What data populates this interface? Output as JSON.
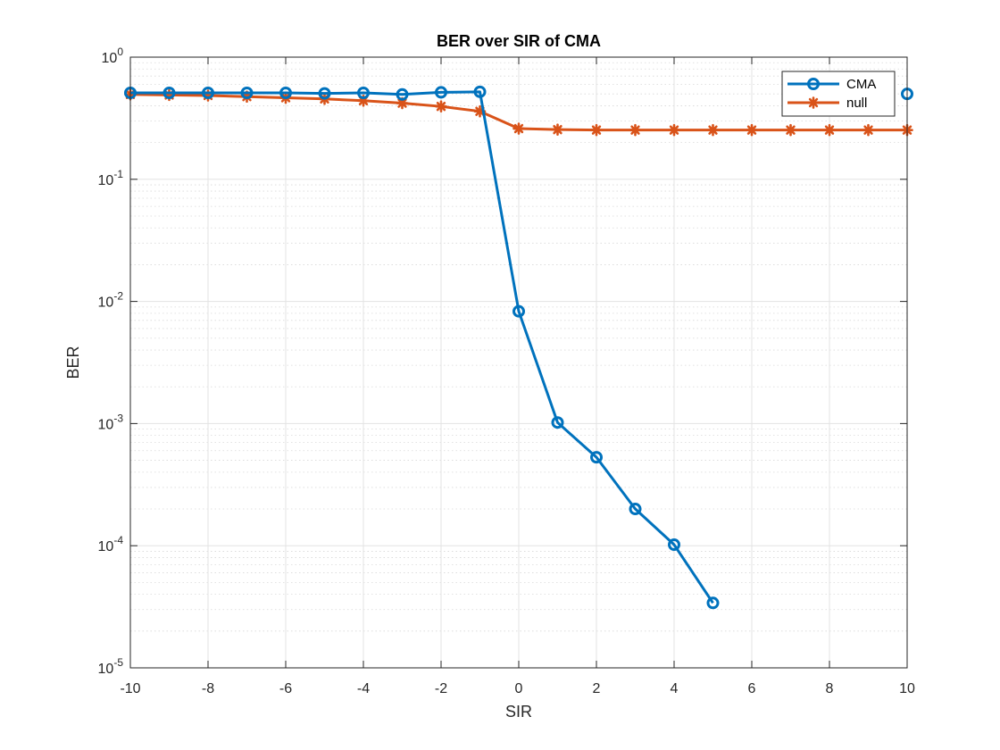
{
  "chart_data": {
    "type": "line",
    "title": "BER over SIR of CMA",
    "xlabel": "SIR",
    "ylabel": "BER",
    "xlim": [
      -10,
      10
    ],
    "ylim": [
      1e-05,
      1
    ],
    "yscale": "log",
    "grid": true,
    "minor_grid": true,
    "legend_position": "top-right",
    "x_ticks": [
      -10,
      -8,
      -6,
      -4,
      -2,
      0,
      2,
      4,
      6,
      8,
      10
    ],
    "x_tick_labels": [
      "-10",
      "-8",
      "-6",
      "-4",
      "-2",
      "0",
      "2",
      "4",
      "6",
      "8",
      "10"
    ],
    "y_ticks": [
      {
        "value": 1e-05,
        "base": "10",
        "exp": "-5"
      },
      {
        "value": 0.0001,
        "base": "10",
        "exp": "-4"
      },
      {
        "value": 0.001,
        "base": "10",
        "exp": "-3"
      },
      {
        "value": 0.01,
        "base": "10",
        "exp": "-2"
      },
      {
        "value": 0.1,
        "base": "10",
        "exp": "-1"
      },
      {
        "value": 1,
        "base": "10",
        "exp": "0"
      }
    ],
    "series": [
      {
        "name": "CMA",
        "color": "#0072BD",
        "marker": "circle",
        "x": [
          -10,
          -9,
          -8,
          -7,
          -6,
          -5,
          -4,
          -3,
          -2,
          -1,
          0,
          1,
          2,
          3,
          4,
          5,
          10
        ],
        "y": [
          0.51,
          0.51,
          0.51,
          0.51,
          0.51,
          0.505,
          0.51,
          0.495,
          0.515,
          0.52,
          0.0083,
          0.00102,
          0.00053,
          0.0002,
          0.000102,
          3.4e-05,
          0.5
        ]
      },
      {
        "name": "null",
        "color": "#D95319",
        "marker": "asterisk",
        "x": [
          -10,
          -9,
          -8,
          -7,
          -6,
          -5,
          -4,
          -3,
          -2,
          -1,
          0,
          1,
          2,
          3,
          4,
          5,
          6,
          7,
          8,
          9,
          10
        ],
        "y": [
          0.495,
          0.49,
          0.485,
          0.475,
          0.465,
          0.455,
          0.44,
          0.42,
          0.395,
          0.36,
          0.26,
          0.255,
          0.253,
          0.253,
          0.253,
          0.253,
          0.253,
          0.253,
          0.253,
          0.253,
          0.253
        ]
      }
    ]
  }
}
